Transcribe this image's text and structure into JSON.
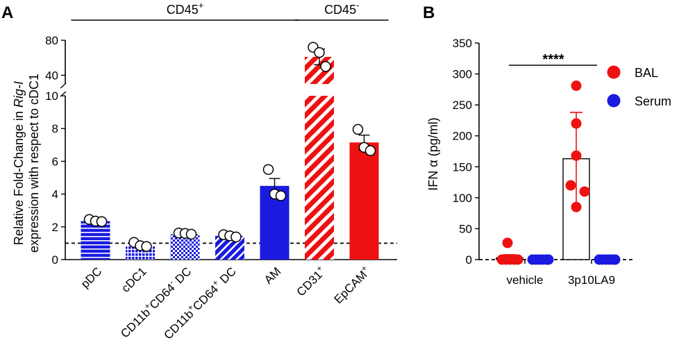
{
  "panel_a": {
    "letter": "A",
    "chart_data": {
      "type": "bar",
      "ylabel_line1_pre": "Relative Fold-Change in ",
      "ylabel_line1_gene": "Rig-I",
      "ylabel_line2": "expression with respect to cDC1",
      "ylim_lower": [
        0,
        10
      ],
      "ylim_upper": [
        30,
        80
      ],
      "yticks_lower": [
        0,
        2,
        4,
        6,
        8,
        10
      ],
      "yticks_upper": [
        40,
        80
      ],
      "reference_line": 1,
      "groups": [
        {
          "label_main": "CD45",
          "label_sup": "+",
          "first": 0,
          "last": 4
        },
        {
          "label_main": "CD45",
          "label_sup": "-",
          "first": 5,
          "last": 6
        }
      ],
      "categories": [
        {
          "name": "pDC",
          "parts": [
            {
              "t": "pDC"
            }
          ],
          "value": 2.35,
          "sem": 0.08,
          "points": [
            2.45,
            2.35,
            2.32
          ],
          "color": "#1a1ae0",
          "pattern": "hlines"
        },
        {
          "name": "cDC1",
          "parts": [
            {
              "t": "cDC1"
            }
          ],
          "value": 0.8,
          "sem": 0.1,
          "points": [
            1.05,
            0.85,
            0.8
          ],
          "color": "#1a1ae0",
          "pattern": "grid"
        },
        {
          "name": "CD11b+CD64- DC",
          "parts": [
            {
              "t": "CD11b"
            },
            {
              "t": "+",
              "sup": true
            },
            {
              "t": "CD64"
            },
            {
              "t": "-",
              "sup": true
            },
            {
              "t": " DC"
            }
          ],
          "value": 1.55,
          "sem": 0.06,
          "points": [
            1.62,
            1.6,
            1.55
          ],
          "color": "#1a1ae0",
          "pattern": "checker"
        },
        {
          "name": "CD11b+CD64+ DC",
          "parts": [
            {
              "t": "CD11b"
            },
            {
              "t": "+",
              "sup": true
            },
            {
              "t": "CD64"
            },
            {
              "t": "+",
              "sup": true
            },
            {
              "t": " DC"
            }
          ],
          "value": 1.45,
          "sem": 0.05,
          "points": [
            1.52,
            1.45,
            1.38
          ],
          "color": "#1a1ae0",
          "pattern": "diag-blue"
        },
        {
          "name": "AM",
          "parts": [
            {
              "t": "AM"
            }
          ],
          "value": 4.5,
          "sem": 0.45,
          "points": [
            5.5,
            4.0,
            3.9
          ],
          "color": "#1a1ae0",
          "pattern": "solid"
        },
        {
          "name": "CD31+",
          "parts": [
            {
              "t": "CD31"
            },
            {
              "t": "+",
              "sup": true
            }
          ],
          "value": 61,
          "sem": 9,
          "points": [
            72,
            66,
            50
          ],
          "color": "#ee1111",
          "pattern": "diag-red"
        },
        {
          "name": "EpCAM+",
          "parts": [
            {
              "t": "EpCAM"
            },
            {
              "t": "+",
              "sup": true
            }
          ],
          "value": 7.15,
          "sem": 0.45,
          "points": [
            7.95,
            6.85,
            6.65
          ],
          "color": "#ee1111",
          "pattern": "solid"
        }
      ]
    }
  },
  "panel_b": {
    "letter": "B",
    "chart_data": {
      "type": "scatter-bar",
      "ylabel": "IFN α (pg/ml)",
      "ylim": [
        0,
        350
      ],
      "yticks": [
        0,
        50,
        100,
        150,
        200,
        250,
        300,
        350
      ],
      "categories": [
        "vehicle",
        "3p10LA9"
      ],
      "significance": "****",
      "series": [
        {
          "name": "BAL",
          "color": "#ee1111",
          "mean": [
            3,
            163
          ],
          "sem": [
            5,
            75
          ],
          "points": [
            [
              27,
              0,
              0,
              0,
              0,
              0
            ],
            [
              281,
              220,
              168,
              120,
              110,
              85
            ]
          ]
        },
        {
          "name": "Serum",
          "color": "#1a1ae0",
          "mean": [
            0,
            0
          ],
          "sem": [
            0,
            0
          ],
          "points": [
            [
              0,
              0,
              0,
              0,
              0,
              0
            ],
            [
              0,
              0,
              0,
              0,
              0,
              0
            ]
          ]
        }
      ]
    }
  }
}
